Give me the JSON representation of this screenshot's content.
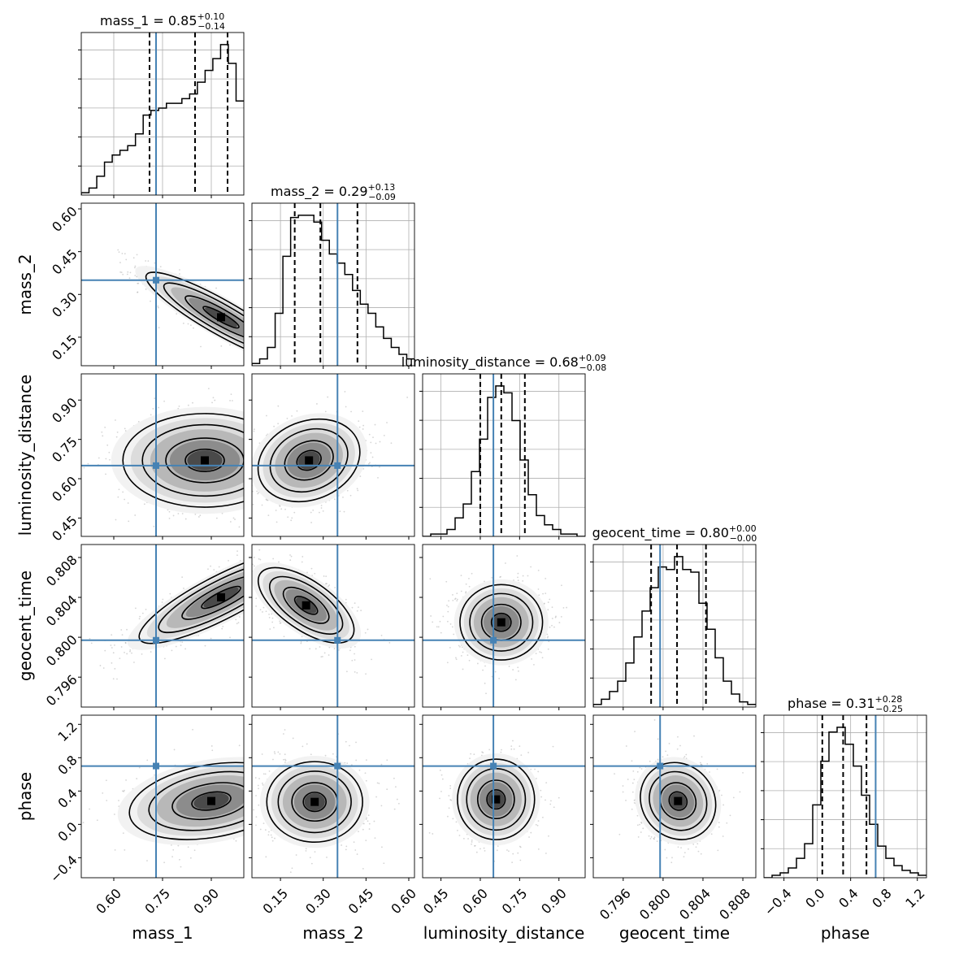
{
  "chart_data": {
    "type": "corner",
    "parameters": [
      {
        "name": "mass_1",
        "label": "mass_1",
        "title": "mass_1 = 0.85",
        "median": 0.85,
        "plus": "0.10",
        "minus": "0.14",
        "quantiles": [
          0.71,
          0.85,
          0.95
        ],
        "truth": 0.73,
        "range": [
          0.5,
          1.0
        ],
        "ticks": [
          0.6,
          0.75,
          0.9
        ],
        "tick_labels": [
          "0.60",
          "0.75",
          "0.90"
        ],
        "hist": [
          1,
          3,
          8,
          14,
          17,
          19,
          21,
          26,
          34,
          36,
          37,
          39,
          39,
          41,
          43,
          48,
          53,
          58,
          64,
          56,
          40
        ]
      },
      {
        "name": "mass_2",
        "label": "mass_2",
        "title": "mass_2 = 0.29",
        "median": 0.29,
        "plus": "0.13",
        "minus": "0.09",
        "quantiles": [
          0.2,
          0.29,
          0.42
        ],
        "truth": 0.35,
        "range": [
          0.05,
          0.62
        ],
        "ticks": [
          0.15,
          0.3,
          0.45,
          0.6
        ],
        "tick_labels": [
          "0.15",
          "0.30",
          "0.45",
          "0.60"
        ],
        "hist": [
          1,
          3,
          8,
          23,
          48,
          65,
          66,
          66,
          63,
          55,
          49,
          45,
          40,
          33,
          27,
          23,
          17,
          12,
          8,
          5,
          3
        ]
      },
      {
        "name": "luminosity_distance",
        "label": "luminosity_distance",
        "title": "luminosity_distance = 0.68",
        "median": 0.68,
        "plus": "0.09",
        "minus": "0.08",
        "quantiles": [
          0.6,
          0.68,
          0.77
        ],
        "truth": 0.65,
        "range": [
          0.38,
          1.0
        ],
        "ticks": [
          0.45,
          0.6,
          0.75,
          0.9
        ],
        "tick_labels": [
          "0.45",
          "0.60",
          "0.75",
          "0.90"
        ],
        "hist": [
          0,
          1,
          1,
          3,
          8,
          14,
          28,
          42,
          60,
          65,
          62,
          50,
          33,
          18,
          9,
          5,
          3,
          1,
          1,
          0
        ]
      },
      {
        "name": "geocent_time",
        "label": "geocent_time",
        "title": "geocent_time = 0.80",
        "median": 0.8,
        "plus": "0.00",
        "minus": "0.00",
        "quantiles": [
          0.7988,
          0.8014,
          0.8043
        ],
        "truth": 0.7997,
        "range": [
          0.793,
          0.8093
        ],
        "ticks": [
          0.796,
          0.8,
          0.804,
          0.808
        ],
        "tick_labels": [
          "0.796",
          "0.800",
          "0.804",
          "0.808"
        ],
        "hist": [
          1,
          3,
          6,
          10,
          17,
          27,
          37,
          46,
          54,
          53,
          58,
          53,
          52,
          40,
          30,
          19,
          10,
          5,
          2,
          1
        ]
      },
      {
        "name": "phase",
        "label": "phase",
        "title": "phase = 0.31",
        "median": 0.31,
        "plus": "0.28",
        "minus": "0.25",
        "quantiles": [
          0.06,
          0.31,
          0.59
        ],
        "truth": 0.7,
        "range": [
          -0.64,
          1.31
        ],
        "ticks": [
          -0.4,
          0.0,
          0.4,
          0.8,
          1.2
        ],
        "tick_labels": [
          "−0.4",
          "0.0",
          "0.4",
          "0.8",
          "1.2"
        ],
        "hist": [
          0,
          1,
          2,
          4,
          8,
          14,
          30,
          48,
          60,
          62,
          55,
          46,
          34,
          22,
          13,
          8,
          5,
          3,
          2,
          1
        ]
      }
    ],
    "pair_styles": [
      [
        [
          1,
          0
        ],
        {
          "mean": [
            0.93,
            0.22
          ],
          "sd": [
            0.11,
            0.075
          ],
          "rho": -0.9
        }
      ],
      [
        [
          2,
          0
        ],
        {
          "mean": [
            0.88,
            0.67
          ],
          "sd": [
            0.12,
            0.085
          ],
          "rho": 0.0
        }
      ],
      [
        [
          2,
          1
        ],
        {
          "mean": [
            0.25,
            0.67
          ],
          "sd": [
            0.085,
            0.075
          ],
          "rho": 0.2
        }
      ],
      [
        [
          3,
          0
        ],
        {
          "mean": [
            0.93,
            0.804
          ],
          "sd": [
            0.12,
            0.0022
          ],
          "rho": 0.85
        }
      ],
      [
        [
          3,
          1
        ],
        {
          "mean": [
            0.24,
            0.8032
          ],
          "sd": [
            0.08,
            0.0018
          ],
          "rho": -0.65
        }
      ],
      [
        [
          3,
          2
        ],
        {
          "mean": [
            0.68,
            0.8015
          ],
          "sd": [
            0.075,
            0.0018
          ],
          "rho": 0.0
        }
      ],
      [
        [
          4,
          0
        ],
        {
          "mean": [
            0.9,
            0.28
          ],
          "sd": [
            0.12,
            0.22
          ],
          "rho": 0.3
        }
      ],
      [
        [
          4,
          1
        ],
        {
          "mean": [
            0.27,
            0.27
          ],
          "sd": [
            0.08,
            0.23
          ],
          "rho": 0.0
        }
      ],
      [
        [
          4,
          2
        ],
        {
          "mean": [
            0.66,
            0.3
          ],
          "sd": [
            0.07,
            0.23
          ],
          "rho": 0.0
        }
      ],
      [
        [
          4,
          3
        ],
        {
          "mean": [
            0.8015,
            0.28
          ],
          "sd": [
            0.0018,
            0.22
          ],
          "rho": -0.1
        }
      ]
    ],
    "colors": {
      "truth": "#4682b4",
      "grid": "#b0b0b0",
      "hist": "#000000",
      "density": "#000000",
      "points": "#888888"
    },
    "grid": true
  }
}
